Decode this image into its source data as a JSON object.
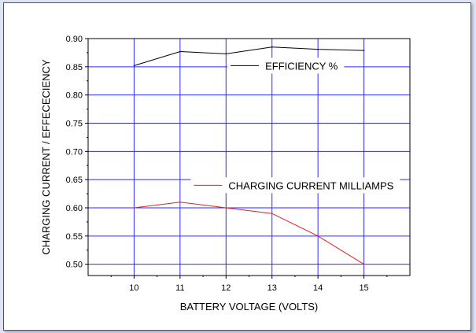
{
  "chart_data": {
    "type": "line",
    "title": "",
    "xlabel": "BATTERY VOLTAGE (VOLTS)",
    "ylabel": "CHARGING CURRENT / EFFECECIENCY",
    "x": [
      10,
      11,
      12,
      13,
      14,
      15
    ],
    "xlim": [
      9,
      16
    ],
    "ylim": [
      0.48,
      0.9
    ],
    "xticks": [
      "10",
      "11",
      "12",
      "13",
      "14",
      "15"
    ],
    "yticks": [
      "0.50",
      "0.55",
      "0.60",
      "0.65",
      "0.70",
      "0.75",
      "0.80",
      "0.85",
      "0.90"
    ],
    "grid": true,
    "grid_color": "#2a2aff",
    "series": [
      {
        "name": "EFFICIENCY  %",
        "color": "#000000",
        "values": [
          0.852,
          0.877,
          0.873,
          0.885,
          0.881,
          0.879
        ]
      },
      {
        "name": "CHARGING CURRENT MILLIAMPS",
        "color": "#e02020",
        "values": [
          0.6,
          0.61,
          0.6,
          0.59,
          0.55,
          0.5
        ]
      }
    ]
  }
}
